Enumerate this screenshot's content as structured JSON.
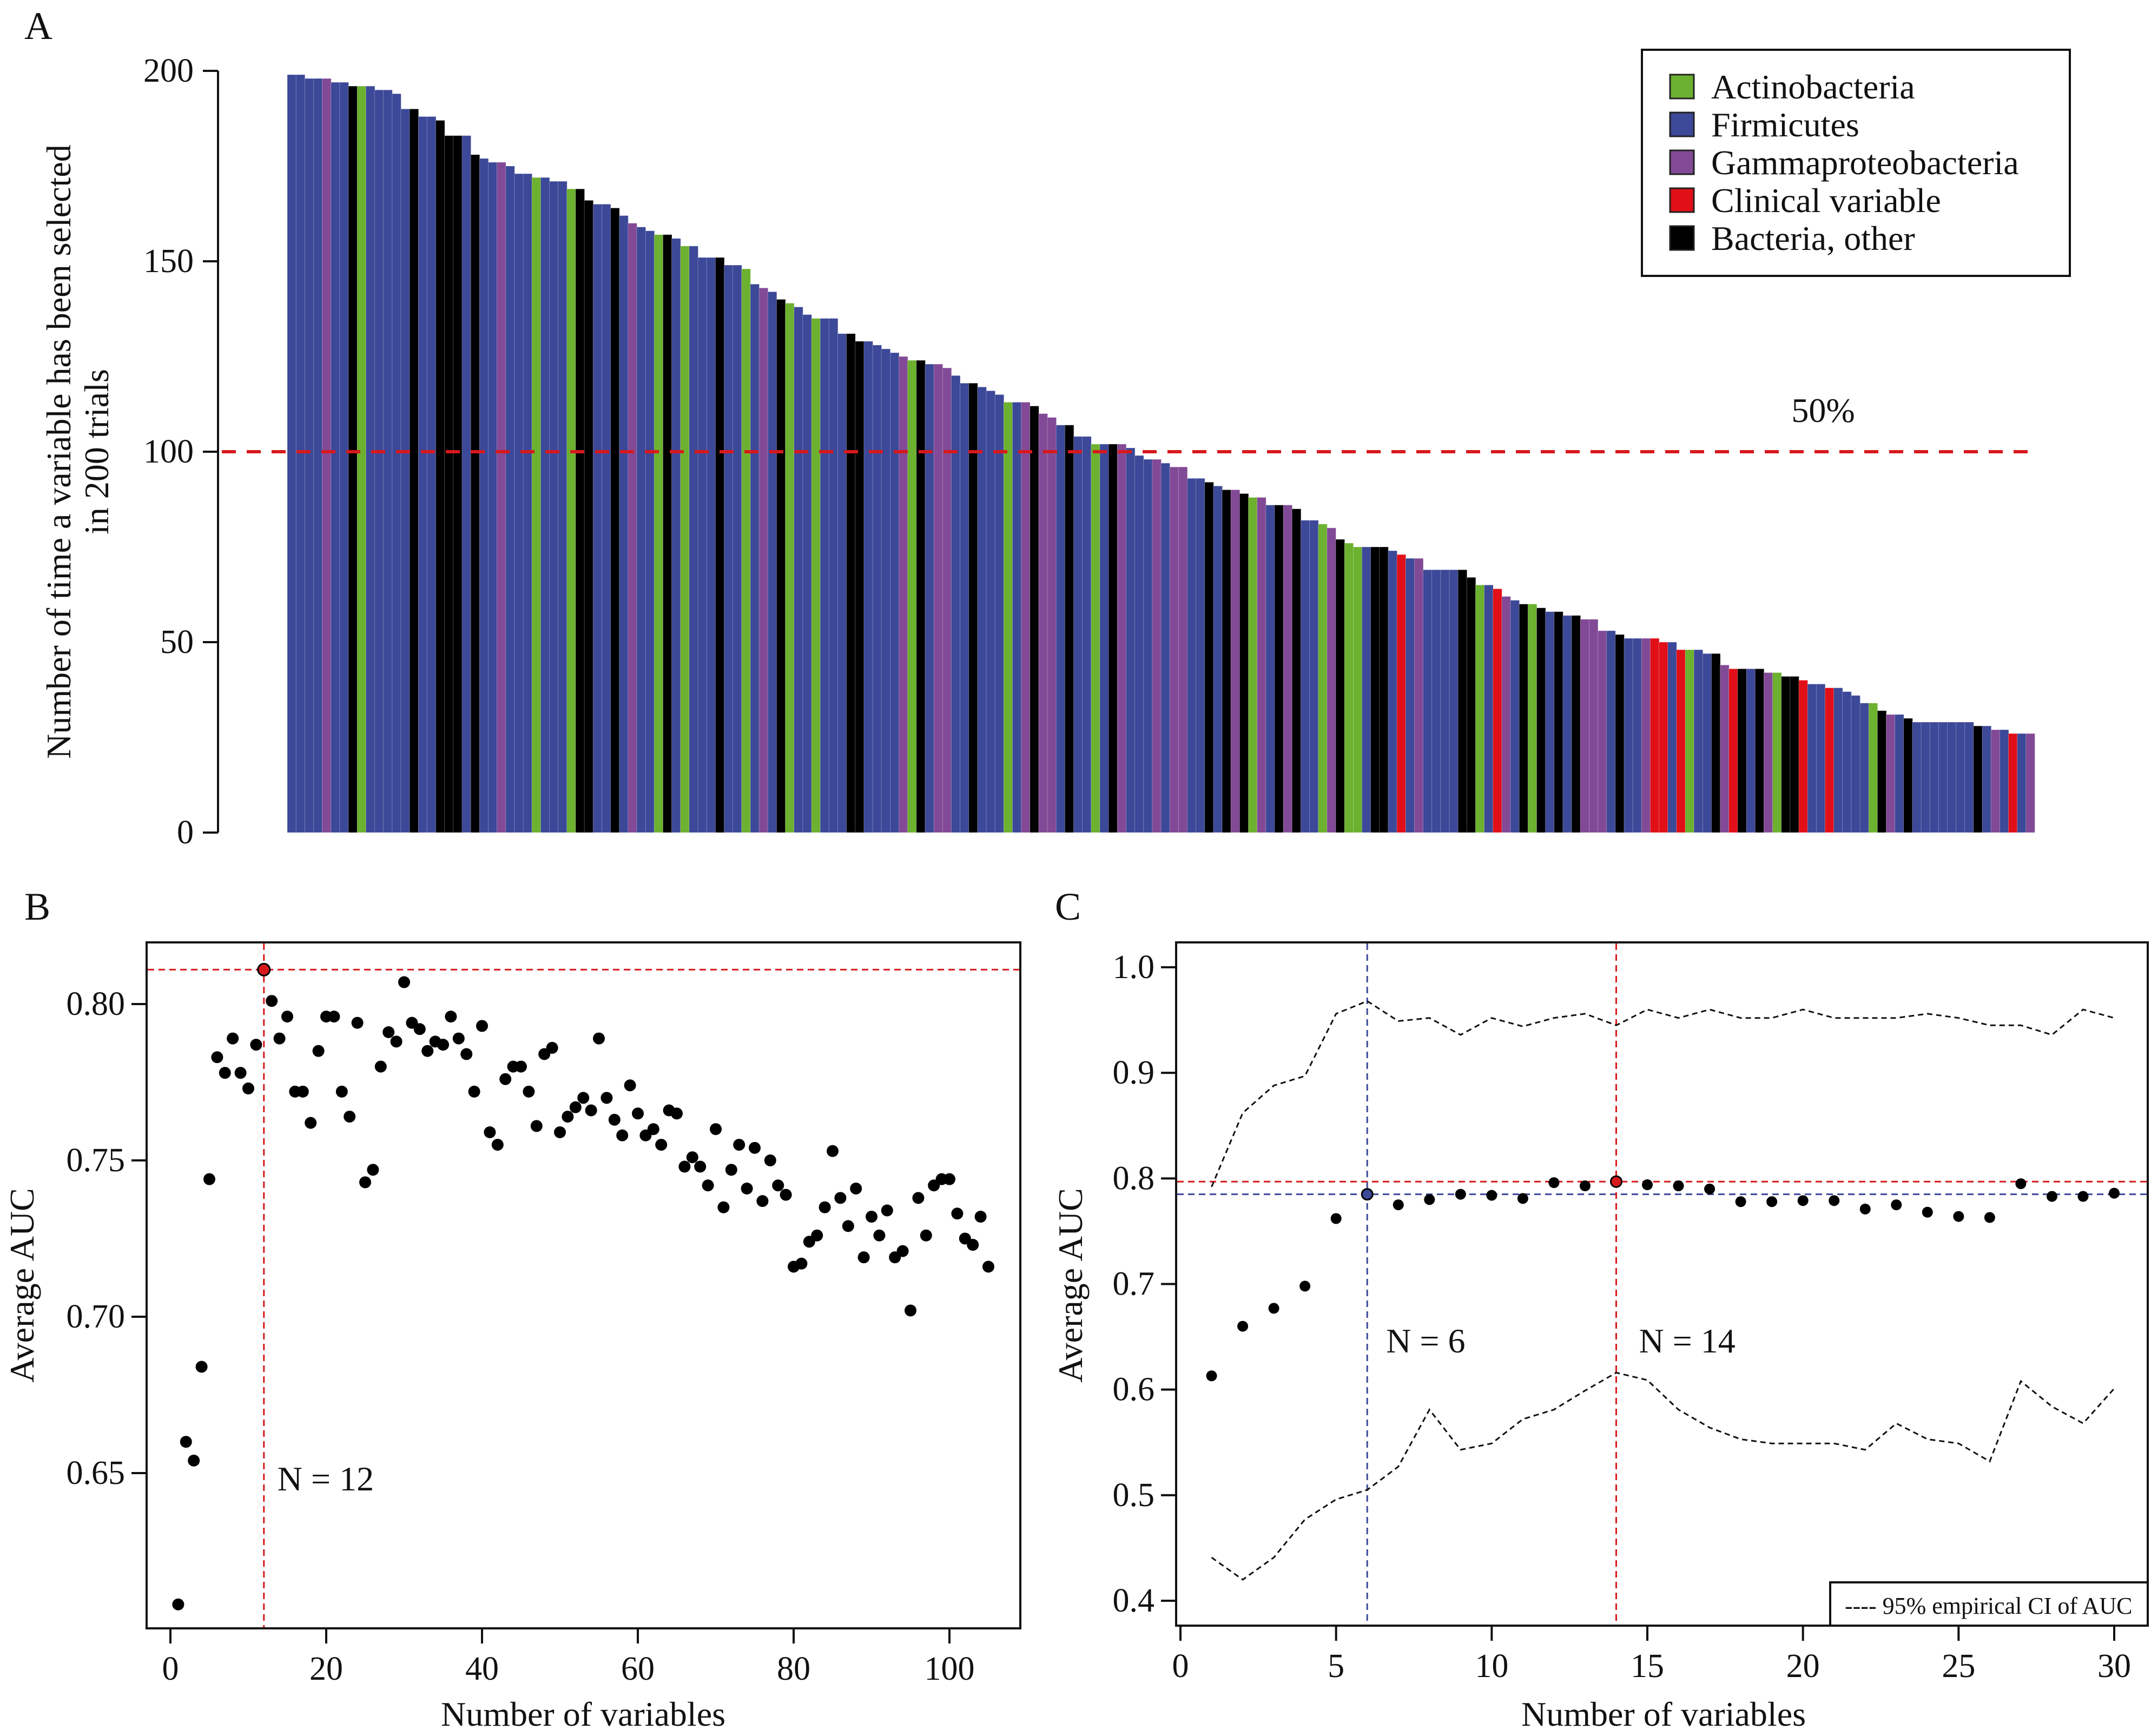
{
  "figure": {
    "panels": [
      "A",
      "B",
      "C"
    ]
  },
  "chart_data": [
    {
      "panel": "A",
      "type": "bar",
      "title": "",
      "xlabel": "",
      "ylabel": "Number of time a variable has been selected in 200 trials",
      "ylabel_lines": [
        "Number of time a variable has been selected",
        "in 200 trials"
      ],
      "ylim": [
        0,
        200
      ],
      "yticks": [
        0,
        50,
        100,
        150,
        200
      ],
      "grid": false,
      "legend_position": "top-right",
      "reference_line": {
        "value": 100,
        "label": "50%",
        "color": "#d7191c",
        "style": "dashed"
      },
      "categories_legend": [
        {
          "key": "G",
          "label": "Actinobacteria",
          "color": "#6cb12f"
        },
        {
          "key": "F",
          "label": "Firmicutes",
          "color": "#3c4898"
        },
        {
          "key": "P",
          "label": "Gammaproteobacteria",
          "color": "#824a96"
        },
        {
          "key": "R",
          "label": "Clinical variable",
          "color": "#e10f17"
        },
        {
          "key": "K",
          "label": "Bacteria, other",
          "color": "#000000"
        }
      ],
      "values": [
        199,
        199,
        198,
        198,
        198,
        197,
        197,
        196,
        196,
        196,
        195,
        195,
        194,
        190,
        190,
        188,
        188,
        187,
        183,
        183,
        183,
        178,
        177,
        176,
        176,
        175,
        173,
        173,
        172,
        172,
        171,
        171,
        169,
        169,
        166,
        165,
        165,
        164,
        162,
        160,
        159,
        158,
        157,
        157,
        156,
        154,
        154,
        151,
        151,
        151,
        149,
        149,
        148,
        144,
        143,
        142,
        140,
        139,
        138,
        136,
        135,
        135,
        135,
        131,
        131,
        129,
        129,
        128,
        127,
        126,
        125,
        124,
        124,
        123,
        123,
        122,
        120,
        118,
        118,
        117,
        116,
        115,
        113,
        113,
        113,
        112,
        110,
        109,
        107,
        107,
        104,
        104,
        102,
        102,
        102,
        102,
        101,
        99,
        98,
        98,
        97,
        96,
        96,
        93,
        93,
        92,
        91,
        90,
        90,
        89,
        88,
        88,
        86,
        86,
        86,
        85,
        82,
        82,
        81,
        80,
        77,
        76,
        75,
        75,
        75,
        75,
        74,
        73,
        72,
        72,
        69,
        69,
        69,
        69,
        69,
        67,
        65,
        65,
        64,
        62,
        61,
        60,
        60,
        59,
        58,
        58,
        57,
        57,
        56,
        56,
        53,
        53,
        52,
        51,
        51,
        51,
        51,
        50,
        50,
        48,
        48,
        48,
        47,
        47,
        44,
        43,
        43,
        43,
        43,
        42,
        42,
        41,
        41,
        40,
        39,
        39,
        38,
        38,
        37,
        36,
        34,
        34,
        32,
        31,
        31,
        30,
        29,
        29,
        29,
        29,
        29,
        29,
        29,
        28,
        28,
        27,
        27,
        26,
        26,
        26
      ],
      "groups": "FFFFPFFKGFFFFFKFFKKKFKFFPFFFGFFFGKKFFKFPFFGKFGFFFKFFGFPFKGFFGFFFKKFFFFPGKFPPFFKFFFGFPKPPFKFFGFKPFFFPFPPFFKFKPKGPFKPKFFGPKGGFKKFRFPFFFFKKGFRPFKGKFKFKPPPFKFFPRRFRGFFKPRKFKPGKKRFFRFFFFGKPFKFFFFFFFKFPFRFPR"
    },
    {
      "panel": "B",
      "type": "scatter",
      "title": "",
      "xlabel": "Number of variables",
      "ylabel": "Average AUC",
      "xlim": [
        -3,
        109
      ],
      "ylim": [
        0.598,
        0.82
      ],
      "xticks": [
        0,
        20,
        40,
        60,
        80,
        100
      ],
      "yticks": [
        "0.65",
        "0.70",
        "0.75",
        "0.80"
      ],
      "grid": false,
      "highlight": {
        "x": 12,
        "y": 0.811,
        "color": "#d7191c",
        "label": "N = 12"
      },
      "x": [
        1,
        2,
        3,
        4,
        5,
        6,
        7,
        8,
        9,
        10,
        11,
        12,
        13,
        14,
        15,
        16,
        17,
        18,
        19,
        20,
        21,
        22,
        23,
        24,
        25,
        26,
        27,
        28,
        29,
        30,
        31,
        32,
        33,
        34,
        35,
        36,
        37,
        38,
        39,
        40,
        41,
        42,
        43,
        44,
        45,
        46,
        47,
        48,
        49,
        50,
        51,
        52,
        53,
        54,
        55,
        56,
        57,
        58,
        59,
        60,
        61,
        62,
        63,
        64,
        65,
        66,
        67,
        68,
        69,
        70,
        71,
        72,
        73,
        74,
        75,
        76,
        77,
        78,
        79,
        80,
        81,
        82,
        83,
        84,
        85,
        86,
        87,
        88,
        89,
        90,
        91,
        92,
        93,
        94,
        95,
        96,
        97,
        98,
        99,
        100,
        101,
        102,
        103,
        104,
        105
      ],
      "y": [
        0.608,
        0.66,
        0.654,
        0.684,
        0.744,
        0.783,
        0.778,
        0.789,
        0.778,
        0.773,
        0.787,
        0.811,
        0.801,
        0.789,
        0.796,
        0.772,
        0.772,
        0.762,
        0.785,
        0.796,
        0.796,
        0.772,
        0.764,
        0.794,
        0.743,
        0.747,
        0.78,
        0.791,
        0.788,
        0.807,
        0.794,
        0.792,
        0.785,
        0.788,
        0.787,
        0.796,
        0.789,
        0.784,
        0.772,
        0.793,
        0.759,
        0.755,
        0.776,
        0.78,
        0.78,
        0.772,
        0.761,
        0.784,
        0.786,
        0.759,
        0.764,
        0.767,
        0.77,
        0.766,
        0.789,
        0.77,
        0.763,
        0.758,
        0.774,
        0.765,
        0.758,
        0.76,
        0.755,
        0.766,
        0.765,
        0.748,
        0.751,
        0.748,
        0.742,
        0.76,
        0.735,
        0.747,
        0.755,
        0.741,
        0.754,
        0.737,
        0.75,
        0.742,
        0.739,
        0.716,
        0.717,
        0.724,
        0.726,
        0.735,
        0.753,
        0.738,
        0.729,
        0.741,
        0.719,
        0.732,
        0.726,
        0.734,
        0.719,
        0.721,
        0.702,
        0.738,
        0.726,
        0.742,
        0.744,
        0.744,
        0.733,
        0.725,
        0.723,
        0.732,
        0.716
      ]
    },
    {
      "panel": "C",
      "type": "scatter",
      "title": "",
      "xlabel": "Number of variables",
      "ylabel": "Average AUC",
      "xlim": [
        -0.4,
        31
      ],
      "ylim": [
        0.376,
        1.024
      ],
      "xticks": [
        0,
        5,
        10,
        15,
        20,
        25,
        30
      ],
      "yticks": [
        "0.4",
        "0.5",
        "0.6",
        "0.7",
        "0.8",
        "0.9",
        "1.0"
      ],
      "grid": false,
      "legend_position": "bottom-right",
      "legend_label": "---- 95% empirical CI of AUC",
      "highlights": [
        {
          "x": 6,
          "y": 0.785,
          "color": "#3c4898",
          "label": "N = 6"
        },
        {
          "x": 14,
          "y": 0.797,
          "color": "#d7191c",
          "label": "N = 14"
        }
      ],
      "x": [
        1,
        2,
        3,
        4,
        5,
        6,
        7,
        8,
        9,
        10,
        11,
        12,
        13,
        14,
        15,
        16,
        17,
        18,
        19,
        20,
        21,
        22,
        23,
        24,
        25,
        26,
        27,
        28,
        29,
        30
      ],
      "y": [
        0.613,
        0.66,
        0.677,
        0.698,
        0.762,
        0.785,
        0.775,
        0.78,
        0.785,
        0.784,
        0.781,
        0.796,
        0.793,
        0.797,
        0.794,
        0.793,
        0.79,
        0.778,
        0.778,
        0.779,
        0.779,
        0.771,
        0.775,
        0.768,
        0.764,
        0.763,
        0.795,
        0.783,
        0.783,
        0.786
      ],
      "series": [
        {
          "name": "95% CI upper",
          "values": [
            0.792,
            0.862,
            0.888,
            0.897,
            0.956,
            0.968,
            0.949,
            0.952,
            0.936,
            0.952,
            0.944,
            0.952,
            0.956,
            0.945,
            0.96,
            0.952,
            0.96,
            0.952,
            0.952,
            0.96,
            0.952,
            0.952,
            0.952,
            0.956,
            0.952,
            0.945,
            0.945,
            0.936,
            0.96,
            0.952
          ]
        },
        {
          "name": "95% CI lower",
          "values": [
            0.441,
            0.42,
            0.441,
            0.477,
            0.496,
            0.505,
            0.527,
            0.581,
            0.543,
            0.549,
            0.572,
            0.581,
            0.599,
            0.616,
            0.609,
            0.581,
            0.564,
            0.553,
            0.549,
            0.549,
            0.549,
            0.543,
            0.568,
            0.553,
            0.549,
            0.532,
            0.608,
            0.584,
            0.568,
            0.601
          ]
        }
      ]
    }
  ]
}
